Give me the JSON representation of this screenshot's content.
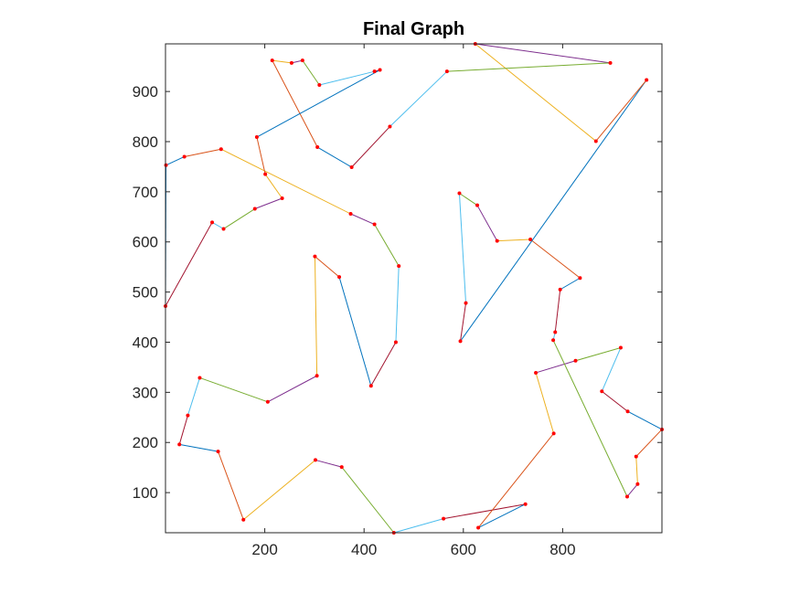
{
  "chart_data": {
    "type": "line",
    "title": "Final Graph",
    "xlabel": "",
    "ylabel": "",
    "xlim": [
      0,
      1000
    ],
    "ylim": [
      20,
      995
    ],
    "xticks": [
      200,
      400,
      600,
      800
    ],
    "yticks": [
      100,
      200,
      300,
      400,
      500,
      600,
      700,
      800,
      900
    ],
    "grid": false,
    "legend": "none",
    "node_color": "#ff0000",
    "palette": [
      "#0072bd",
      "#d95319",
      "#edb120",
      "#7e2f8e",
      "#77ac30",
      "#4dbeee",
      "#a2142f"
    ],
    "path": [
      [
        1,
        753
      ],
      [
        38,
        770
      ],
      [
        112,
        785
      ],
      [
        373,
        656
      ],
      [
        421,
        635
      ],
      [
        470,
        552
      ],
      [
        464,
        400
      ],
      [
        414,
        313
      ],
      [
        350,
        530
      ],
      [
        301,
        571
      ],
      [
        305,
        333
      ],
      [
        206,
        281
      ],
      [
        69,
        329
      ],
      [
        45,
        254
      ],
      [
        28,
        196
      ],
      [
        106,
        182
      ],
      [
        157,
        46
      ],
      [
        302,
        165
      ],
      [
        355,
        151
      ],
      [
        460,
        20
      ],
      [
        560,
        48
      ],
      [
        725,
        77
      ],
      [
        630,
        30
      ],
      [
        782,
        218
      ],
      [
        746,
        339
      ],
      [
        826,
        363
      ],
      [
        917,
        389
      ],
      [
        879,
        302
      ],
      [
        931,
        262
      ],
      [
        1000,
        226
      ],
      [
        948,
        172
      ],
      [
        951,
        117
      ],
      [
        930,
        92
      ],
      [
        781,
        404
      ],
      [
        785,
        420
      ],
      [
        795,
        505
      ],
      [
        835,
        528
      ],
      [
        735,
        605
      ],
      [
        668,
        602
      ],
      [
        628,
        673
      ],
      [
        592,
        697
      ],
      [
        605,
        478
      ],
      [
        594,
        402
      ],
      [
        969,
        923
      ],
      [
        867,
        801
      ],
      [
        624,
        995
      ],
      [
        896,
        957
      ],
      [
        567,
        940
      ],
      [
        452,
        830
      ],
      [
        375,
        749
      ],
      [
        306,
        789
      ],
      [
        215,
        962
      ],
      [
        254,
        957
      ],
      [
        276,
        962
      ],
      [
        310,
        913
      ],
      [
        421,
        940
      ],
      [
        432,
        943
      ],
      [
        184,
        809
      ],
      [
        201,
        735
      ],
      [
        235,
        687
      ],
      [
        180,
        666
      ],
      [
        117,
        626
      ],
      [
        94,
        639
      ],
      [
        0,
        472
      ],
      [
        1,
        753
      ]
    ]
  }
}
